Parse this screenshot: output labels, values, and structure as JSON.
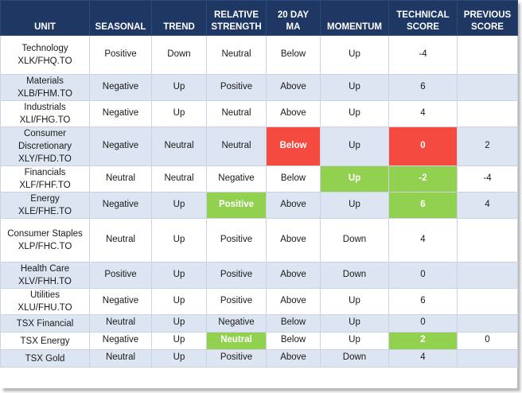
{
  "headers": {
    "unit": [
      "UNIT"
    ],
    "seasonal": [
      "SEASONAL"
    ],
    "trend": [
      "TREND"
    ],
    "relative_strength": [
      "RELATIVE",
      "STRENGTH"
    ],
    "ma20": [
      "20 DAY",
      "MA"
    ],
    "momentum": [
      "MOMENTUM"
    ],
    "technical_score": [
      "TECHNICAL",
      "SCORE"
    ],
    "previous_score": [
      "PREVIOUS",
      "SCORE"
    ]
  },
  "colors": {
    "header_bg": "#1f3863",
    "alt_row": "#dce5f1",
    "red": "#f44a3f",
    "green": "#92d050"
  },
  "rows": [
    {
      "unit": [
        "Technology",
        "XLK/FHQ.TO"
      ],
      "seasonal": "Positive",
      "trend": "Down",
      "relative_strength": "Neutral",
      "ma20": "Below",
      "momentum": "Up",
      "technical_score": "-4",
      "previous_score": "",
      "highlight": {}
    },
    {
      "unit": [
        "Materials",
        "XLB/FHM.TO"
      ],
      "seasonal": "Negative",
      "trend": "Up",
      "relative_strength": "Positive",
      "ma20": "Above",
      "momentum": "Up",
      "technical_score": "6",
      "previous_score": "",
      "highlight": {}
    },
    {
      "unit": [
        "Industrials",
        "XLI/FHG.TO"
      ],
      "seasonal": "Negative",
      "trend": "Up",
      "relative_strength": "Neutral",
      "ma20": "Above",
      "momentum": "Up",
      "technical_score": "4",
      "previous_score": "",
      "highlight": {}
    },
    {
      "unit": [
        "Consumer",
        "Discretionary",
        "XLY/FHD.TO"
      ],
      "seasonal": "Negative",
      "trend": "Neutral",
      "relative_strength": "Neutral",
      "ma20": "Below",
      "momentum": "Up",
      "technical_score": "0",
      "previous_score": "2",
      "highlight": {
        "ma20": "red",
        "technical_score": "red"
      }
    },
    {
      "unit": [
        "Financials",
        "XLF/FHF.TO"
      ],
      "seasonal": "Neutral",
      "trend": "Neutral",
      "relative_strength": "Negative",
      "ma20": "Below",
      "momentum": "Up",
      "technical_score": "-2",
      "previous_score": "-4",
      "highlight": {
        "momentum": "green",
        "technical_score": "green"
      }
    },
    {
      "unit": [
        "Energy",
        "XLE/FHE.TO"
      ],
      "seasonal": "Negative",
      "trend": "Up",
      "relative_strength": "Positive",
      "ma20": "Above",
      "momentum": "Up",
      "technical_score": "6",
      "previous_score": "4",
      "highlight": {
        "relative_strength": "green",
        "technical_score": "green"
      }
    },
    {
      "unit": [
        "Consumer Staples",
        "XLP/FHC.TO"
      ],
      "seasonal": "Neutral",
      "trend": "Up",
      "relative_strength": "Positive",
      "ma20": "Above",
      "momentum": "Down",
      "technical_score": "4",
      "previous_score": "",
      "highlight": {}
    },
    {
      "unit": [
        "Health Care",
        "XLV/FHH.TO"
      ],
      "seasonal": "Positive",
      "trend": "Up",
      "relative_strength": "Positive",
      "ma20": "Above",
      "momentum": "Down",
      "technical_score": "0",
      "previous_score": "",
      "highlight": {}
    },
    {
      "unit": [
        "Utilities",
        "XLU/FHU.TO"
      ],
      "seasonal": "Negative",
      "trend": "Up",
      "relative_strength": "Positive",
      "ma20": "Above",
      "momentum": "Up",
      "technical_score": "6",
      "previous_score": "",
      "highlight": {}
    },
    {
      "unit": [
        "TSX Financial"
      ],
      "seasonal": "Neutral",
      "trend": "Up",
      "relative_strength": "Negative",
      "ma20": "Below",
      "momentum": "Up",
      "technical_score": "0",
      "previous_score": "",
      "highlight": {}
    },
    {
      "unit": [
        "TSX Energy"
      ],
      "seasonal": "Negative",
      "trend": "Up",
      "relative_strength": "Neutral",
      "ma20": "Below",
      "momentum": "Up",
      "technical_score": "2",
      "previous_score": "0",
      "highlight": {
        "relative_strength": "green",
        "technical_score": "green"
      }
    },
    {
      "unit": [
        "TSX Gold"
      ],
      "seasonal": "Neutral",
      "trend": "Up",
      "relative_strength": "Positive",
      "ma20": "Above",
      "momentum": "Down",
      "technical_score": "4",
      "previous_score": "",
      "highlight": {}
    }
  ]
}
